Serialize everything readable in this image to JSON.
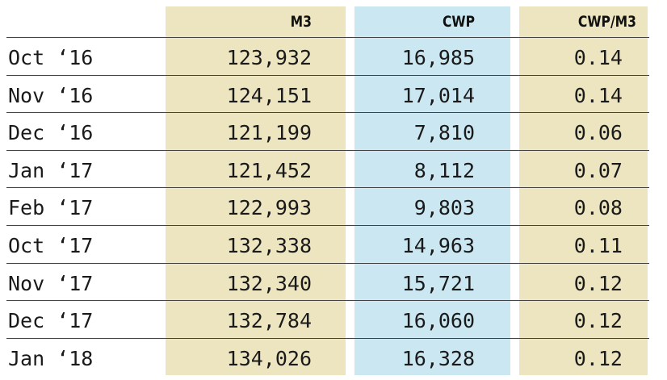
{
  "chart_data": {
    "type": "table",
    "columns": [
      "",
      "M3",
      "CWP",
      "CWP/M3"
    ],
    "rows": [
      {
        "month": "Oct ‘16",
        "m3": "123,932",
        "cwp": "16,985",
        "ratio": "0.14"
      },
      {
        "month": "Nov ‘16",
        "m3": "124,151",
        "cwp": "17,014",
        "ratio": "0.14"
      },
      {
        "month": "Dec ‘16",
        "m3": "121,199",
        "cwp": "7,810",
        "ratio": "0.06"
      },
      {
        "month": "Jan ‘17",
        "m3": "121,452",
        "cwp": "8,112",
        "ratio": "0.07"
      },
      {
        "month": "Feb ‘17",
        "m3": "122,993",
        "cwp": "9,803",
        "ratio": "0.08"
      },
      {
        "month": "Oct ‘17",
        "m3": "132,338",
        "cwp": "14,963",
        "ratio": "0.11"
      },
      {
        "month": "Nov ‘17",
        "m3": "132,340",
        "cwp": "15,721",
        "ratio": "0.12"
      },
      {
        "month": "Dec ‘17",
        "m3": "132,784",
        "cwp": "16,060",
        "ratio": "0.12"
      },
      {
        "month": "Jan ‘18",
        "m3": "134,026",
        "cwp": "16,328",
        "ratio": "0.12"
      }
    ],
    "colors": {
      "m3_column": "#ece5c0",
      "cwp_column": "#cbe7f1",
      "ratio_column": "#ece5c0"
    }
  }
}
